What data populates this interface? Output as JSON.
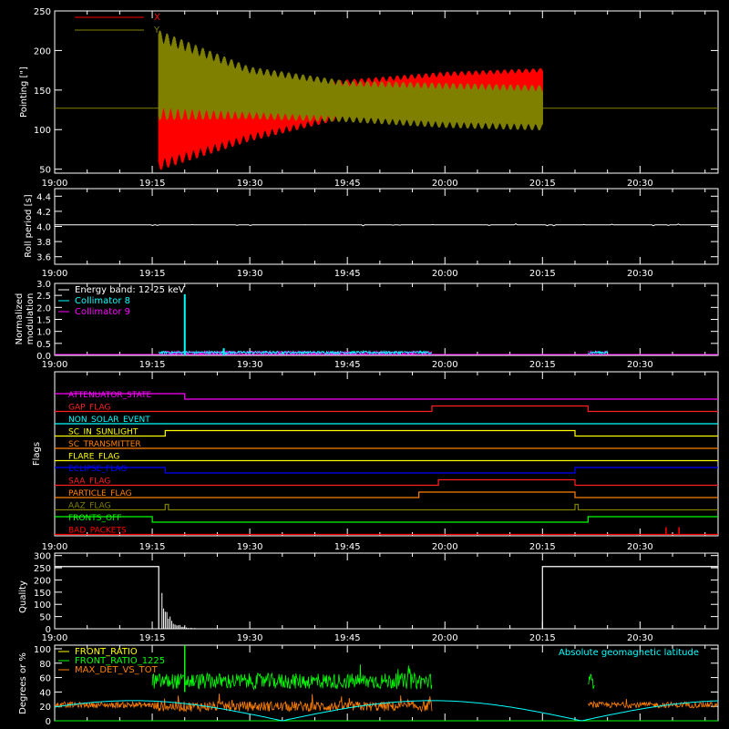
{
  "colors": {
    "background": "#000000",
    "axes": "#ffffff",
    "x_pointing": "#ff0000",
    "y_pointing": "#808000",
    "collimator_8": "#00ffff",
    "collimator_9": "#ff00ff",
    "front_ratio": "#ffff00",
    "front_ratio_1225": "#00ff00",
    "max_det": "#ff8000",
    "geomag": "#00ffff"
  },
  "chart_data": [
    {
      "id": "pointing",
      "type": "line",
      "ylabel": "Pointing [\"]",
      "ylim": [
        45,
        250
      ],
      "yticks": [
        50,
        100,
        150,
        200,
        250
      ],
      "xlim": [
        "19:00",
        "20:42"
      ],
      "xticks": [
        "19:00",
        "19:15",
        "19:30",
        "19:45",
        "20:00",
        "20:15",
        "20:30"
      ],
      "grid": false,
      "legend": "top-left",
      "baseline": 127,
      "data_window": [
        "19:16",
        "20:15"
      ],
      "series": [
        {
          "name": "X",
          "color": "#ff0000",
          "envelope": [
            {
              "t": "19:16",
              "low": 55,
              "high": 140
            },
            {
              "t": "19:30",
              "low": 90,
              "high": 150
            },
            {
              "t": "19:45",
              "low": 118,
              "high": 160
            },
            {
              "t": "20:00",
              "low": 132,
              "high": 170
            },
            {
              "t": "20:15",
              "low": 142,
              "high": 175
            }
          ]
        },
        {
          "name": "Y",
          "color": "#808000",
          "envelope": [
            {
              "t": "19:16",
              "low": 120,
              "high": 218
            },
            {
              "t": "19:30",
              "low": 118,
              "high": 175
            },
            {
              "t": "19:45",
              "low": 113,
              "high": 158
            },
            {
              "t": "20:00",
              "low": 106,
              "high": 155
            },
            {
              "t": "20:15",
              "low": 103,
              "high": 152
            }
          ]
        }
      ]
    },
    {
      "id": "roll",
      "type": "line",
      "ylabel": "Roll period [s]",
      "ylim": [
        3.5,
        4.5
      ],
      "yticks": [
        "3.6",
        "3.8",
        "4.0",
        "4.2",
        "4.4"
      ],
      "xlim": [
        "19:00",
        "20:42"
      ],
      "value": 4.02
    },
    {
      "id": "modulation",
      "type": "line",
      "ylabel": [
        "Normalized",
        "modulation"
      ],
      "ylim": [
        0,
        3.0
      ],
      "yticks": [
        "0.0",
        "0.5",
        "1.0",
        "1.5",
        "2.0",
        "2.5",
        "3.0"
      ],
      "xlim": [
        "19:00",
        "20:42"
      ],
      "annotation": "Energy band: 12-25 keV",
      "series": [
        {
          "name": "Collimator 8",
          "color": "#00ffff",
          "spikes": [
            {
              "t": "19:20",
              "v": 2.55
            },
            {
              "t": "19:26",
              "v": 0.3
            }
          ]
        },
        {
          "name": "Collimator 9",
          "color": "#ff00ff"
        }
      ],
      "data_windows": [
        [
          "19:16",
          "19:58"
        ],
        [
          "20:22",
          "20:25"
        ]
      ]
    },
    {
      "id": "flags",
      "type": "line",
      "ylabel": "Flags",
      "xlim": [
        "19:00",
        "20:42"
      ],
      "flags": [
        {
          "name": "ATTENUATOR_STATE",
          "color": "#ff00ff",
          "changes": [
            {
              "t": "19:00",
              "on": 1
            },
            {
              "t": "19:20",
              "on": 0
            }
          ]
        },
        {
          "name": "GAP_FLAG",
          "color": "#ff2020",
          "changes": [
            {
              "t": "19:00",
              "on": 0
            },
            {
              "t": "19:58",
              "on": 1
            },
            {
              "t": "20:22",
              "on": 0
            }
          ]
        },
        {
          "name": "NON_SOLAR_EVENT",
          "color": "#00ffff",
          "changes": [
            {
              "t": "19:00",
              "on": 0
            }
          ]
        },
        {
          "name": "SC_IN_SUNLIGHT",
          "color": "#ffff00",
          "changes": [
            {
              "t": "19:00",
              "on": 0
            },
            {
              "t": "19:17",
              "on": 1
            },
            {
              "t": "20:20",
              "on": 0
            }
          ]
        },
        {
          "name": "SC_TRANSMITTER",
          "color": "#ff8000",
          "changes": [
            {
              "t": "19:00",
              "on": 0
            }
          ]
        },
        {
          "name": "FLARE_FLAG",
          "color": "#ffff00",
          "changes": [
            {
              "t": "19:00",
              "on": 0
            }
          ]
        },
        {
          "name": "ECLIPSE_FLAG",
          "color": "#0000ff",
          "changes": [
            {
              "t": "19:00",
              "on": 1
            },
            {
              "t": "19:17",
              "on": 0
            },
            {
              "t": "20:20",
              "on": 1
            }
          ]
        },
        {
          "name": "SAA_FLAG",
          "color": "#ff2020",
          "changes": [
            {
              "t": "19:00",
              "on": 0
            },
            {
              "t": "19:59",
              "on": 1
            },
            {
              "t": "20:20",
              "on": 0
            }
          ]
        },
        {
          "name": "PARTICLE_FLAG",
          "color": "#ff8000",
          "changes": [
            {
              "t": "19:00",
              "on": 0
            },
            {
              "t": "19:56",
              "on": 1
            },
            {
              "t": "20:20",
              "on": 0
            }
          ]
        },
        {
          "name": "AAZ_FLAG",
          "color": "#808000",
          "changes": [
            {
              "t": "19:00",
              "on": 0
            },
            {
              "t": "19:17",
              "on": 1
            },
            {
              "t": "19:17.5",
              "on": 0
            },
            {
              "t": "20:20",
              "on": 1
            },
            {
              "t": "20:20.5",
              "on": 0
            }
          ]
        },
        {
          "name": "FRONTS_OFF",
          "color": "#00ff00",
          "changes": [
            {
              "t": "19:00",
              "on": 1
            },
            {
              "t": "19:15",
              "on": 0
            },
            {
              "t": "20:22",
              "on": 1
            }
          ]
        },
        {
          "name": "BAD_PACKETS",
          "color": "#ff0000",
          "changes": [
            {
              "t": "19:00",
              "on": 0
            }
          ]
        }
      ]
    },
    {
      "id": "quality",
      "type": "line",
      "ylabel": "Quality",
      "ylim": [
        0,
        310
      ],
      "yticks": [
        0,
        50,
        100,
        150,
        200,
        250,
        300
      ],
      "xlim": [
        "19:00",
        "20:42"
      ],
      "segments": [
        {
          "from": "19:00",
          "to": "19:16",
          "v": 255
        },
        {
          "from": "20:15",
          "to": "20:42",
          "v": 255
        }
      ]
    },
    {
      "id": "ratios",
      "type": "line",
      "ylabel": "Degrees or %",
      "ylim": [
        0,
        105
      ],
      "yticks": [
        0,
        20,
        40,
        60,
        80,
        100
      ],
      "xlim": [
        "19:00",
        "20:42"
      ],
      "annotation": "Absolute geomagnetic latitude",
      "series": [
        {
          "name": "FRONT_RATIO",
          "color": "#ffff00"
        },
        {
          "name": "FRONT_RATIO_1225",
          "color": "#00ff00",
          "mean": 55
        },
        {
          "name": "MAX_DET_VS_TOT",
          "color": "#ff8000",
          "mean": 20
        }
      ]
    }
  ]
}
